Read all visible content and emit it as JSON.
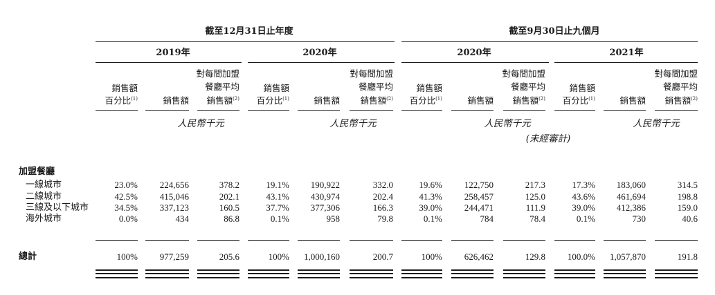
{
  "period_headers": [
    "截至12月31日止年度",
    "截至9月30日止九個月"
  ],
  "year_headers": [
    "2019年",
    "2020年",
    "2020年",
    "2021年"
  ],
  "column_headers": {
    "share": [
      "銷售額",
      "百分比"
    ],
    "share_note": "(1)",
    "sales": "銷售額",
    "avg": [
      "對每間加盟",
      "餐廳平均",
      "銷售額"
    ],
    "avg_note": "(2)"
  },
  "unit_label": "人民幣千元",
  "unaudited_label": "(未經審計)",
  "section_label": "加盟餐廳",
  "rows": [
    {
      "label": "一線城市",
      "values": [
        "23.0%",
        "224,656",
        "378.2",
        "19.1%",
        "190,922",
        "332.0",
        "19.6%",
        "122,750",
        "217.3",
        "17.3%",
        "183,060",
        "314.5"
      ]
    },
    {
      "label": "二線城市",
      "values": [
        "42.5%",
        "415,046",
        "202.1",
        "43.1%",
        "430,974",
        "202.4",
        "41.3%",
        "258,457",
        "125.0",
        "43.6%",
        "461,694",
        "198.8"
      ]
    },
    {
      "label": "三線及以下城市",
      "values": [
        "34.5%",
        "337,123",
        "160.5",
        "37.7%",
        "377,306",
        "166.3",
        "39.0%",
        "244,471",
        "111.9",
        "39.0%",
        "412,386",
        "159.0"
      ]
    },
    {
      "label": "海外城市",
      "values": [
        "0.0%",
        "434",
        "86.8",
        "0.1%",
        "958",
        "79.8",
        "0.1%",
        "784",
        "78.4",
        "0.1%",
        "730",
        "40.6"
      ]
    }
  ],
  "total": {
    "label": "總計",
    "values": [
      "100%",
      "977,259",
      "205.6",
      "100%",
      "1,000,160",
      "200.7",
      "100%",
      "626,462",
      "129.8",
      "100.0%",
      "1,057,870",
      "191.8"
    ]
  }
}
